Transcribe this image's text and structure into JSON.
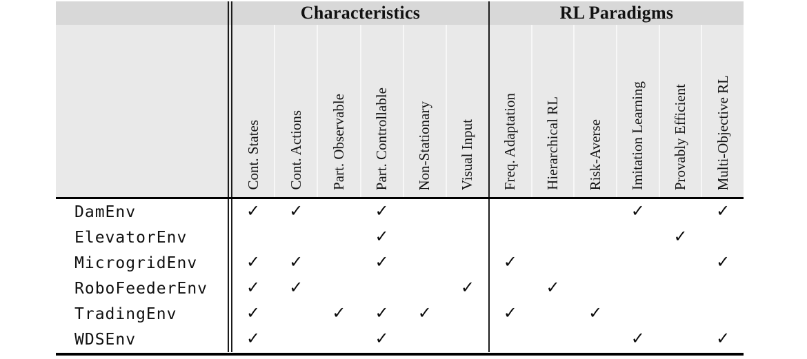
{
  "table": {
    "group_headers": [
      {
        "label": "Characteristics",
        "span": 6
      },
      {
        "label": "RL Paradigms",
        "span": 6
      }
    ],
    "columns": [
      "Cont. States",
      "Cont. Actions",
      "Part. Observable",
      "Part. Controllable",
      "Non-Stationary",
      "Visual Input",
      "Freq. Adaptation",
      "Hierarchical RL",
      "Risk-Averse",
      "Imitation Learning",
      "Provably Efficient",
      "Multi-Objective RL"
    ],
    "check_glyph": "✓",
    "rows": [
      {
        "env": "DamEnv",
        "checks": [
          1,
          1,
          0,
          1,
          0,
          0,
          0,
          0,
          0,
          1,
          0,
          1
        ]
      },
      {
        "env": "ElevatorEnv",
        "checks": [
          0,
          0,
          0,
          1,
          0,
          0,
          0,
          0,
          0,
          0,
          1,
          0
        ]
      },
      {
        "env": "MicrogridEnv",
        "checks": [
          1,
          1,
          0,
          1,
          0,
          0,
          1,
          0,
          0,
          0,
          0,
          1
        ]
      },
      {
        "env": "RoboFeederEnv",
        "checks": [
          1,
          1,
          0,
          0,
          0,
          1,
          0,
          1,
          0,
          0,
          0,
          0
        ]
      },
      {
        "env": "TradingEnv",
        "checks": [
          1,
          0,
          1,
          1,
          1,
          0,
          1,
          0,
          1,
          0,
          0,
          0
        ]
      },
      {
        "env": "WDSEnv",
        "checks": [
          1,
          0,
          0,
          1,
          0,
          0,
          0,
          0,
          0,
          1,
          0,
          1
        ]
      }
    ],
    "colors": {
      "group_header_bg": "#d8d8d8",
      "column_header_bg": "#e9e9e9",
      "row_stripe_bg": "#f2f2f2",
      "rule_color": "#000000"
    }
  }
}
